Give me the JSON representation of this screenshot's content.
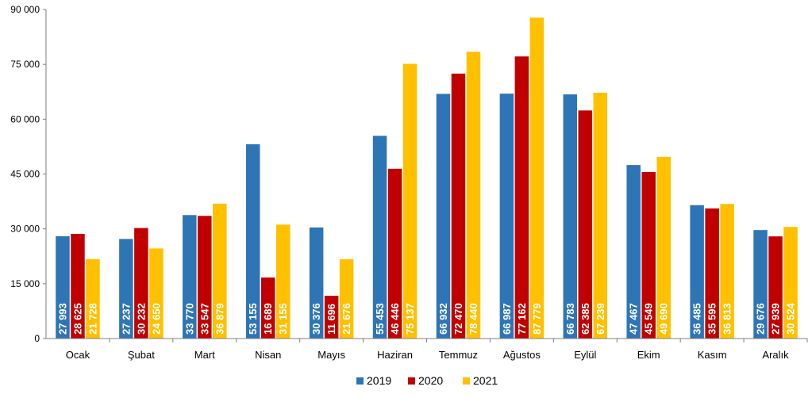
{
  "chart_data": {
    "type": "bar",
    "categories": [
      "Ocak",
      "Şubat",
      "Mart",
      "Nisan",
      "Mayıs",
      "Haziran",
      "Temmuz",
      "Ağustos",
      "Eylül",
      "Ekim",
      "Kasım",
      "Aralık"
    ],
    "series": [
      {
        "name": "2019",
        "color": "#2e75b6",
        "values": [
          27993,
          27237,
          33770,
          53155,
          30376,
          55453,
          66932,
          66987,
          66783,
          47467,
          36485,
          29676
        ],
        "labels": [
          "27 993",
          "27 237",
          "33 770",
          "53 155",
          "30 376",
          "55 453",
          "66 932",
          "66 987",
          "66 783",
          "47 467",
          "36 485",
          "29 676"
        ]
      },
      {
        "name": "2020",
        "color": "#c00000",
        "values": [
          28625,
          30232,
          33547,
          16689,
          11696,
          46446,
          72470,
          77162,
          62385,
          45549,
          35595,
          27939
        ],
        "labels": [
          "28 625",
          "30 232",
          "33 547",
          "16 689",
          "11 696",
          "46 446",
          "72 470",
          "77 162",
          "62 385",
          "45 549",
          "35 595",
          "27 939"
        ]
      },
      {
        "name": "2021",
        "color": "#ffc000",
        "values": [
          21728,
          24650,
          36879,
          31155,
          21676,
          75137,
          78440,
          87779,
          67239,
          49690,
          36813,
          30524
        ],
        "labels": [
          "21 728",
          "24 650",
          "36 879",
          "31 155",
          "21 676",
          "75 137",
          "78 440",
          "87 779",
          "67 239",
          "49 690",
          "36 813",
          "30 524"
        ]
      }
    ],
    "ylim": [
      0,
      90000
    ],
    "yticks": [
      0,
      15000,
      30000,
      45000,
      60000,
      75000,
      90000
    ],
    "ytick_labels": [
      "0",
      "15 000",
      "30 000",
      "45 000",
      "60 000",
      "75 000",
      "90 000"
    ],
    "grid": false,
    "legend_position": "bottom"
  }
}
